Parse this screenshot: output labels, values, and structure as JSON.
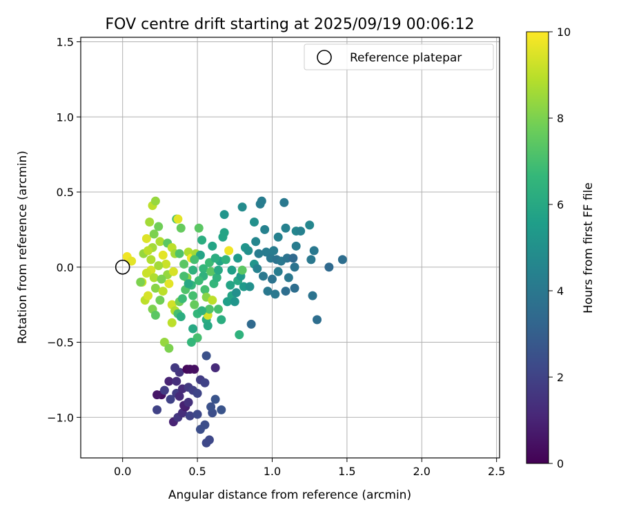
{
  "chart_data": {
    "type": "scatter",
    "title": "FOV centre drift starting at 2025/09/19 00:06:12",
    "xlabel": "Angular distance from reference (arcmin)",
    "ylabel": "Rotation from reference (arcmin)",
    "xlim": [
      -0.28,
      2.52
    ],
    "ylim": [
      -1.27,
      1.53
    ],
    "xticks": [
      0.0,
      0.5,
      1.0,
      1.5,
      2.0,
      2.5
    ],
    "xtick_labels": [
      "0.0",
      "0.5",
      "1.0",
      "1.5",
      "2.0",
      "2.5"
    ],
    "yticks": [
      -1.0,
      -0.5,
      0.0,
      0.5,
      1.0,
      1.5
    ],
    "ytick_labels": [
      "−1.0",
      "−0.5",
      "0.0",
      "0.5",
      "1.0",
      "1.5"
    ],
    "grid": true,
    "legend": {
      "position": "top-right",
      "label": "Reference platepar"
    },
    "reference_point": {
      "x": 0.0,
      "y": 0.0
    },
    "colorbar": {
      "label": "Hours from first FF file",
      "range": [
        0,
        10
      ],
      "ticks": [
        0,
        2,
        4,
        6,
        8,
        10
      ],
      "tick_labels": [
        "0",
        "2",
        "4",
        "6",
        "8",
        "10"
      ],
      "colormap": [
        "#440154",
        "#482878",
        "#3e4989",
        "#31688e",
        "#26828e",
        "#1f9e89",
        "#35b779",
        "#6ece58",
        "#b5de2b",
        "#fde725"
      ]
    },
    "points": [
      {
        "x": 0.34,
        "y": -1.03,
        "h": 1.0
      },
      {
        "x": 0.37,
        "y": -1.0,
        "h": 1.6
      },
      {
        "x": 0.4,
        "y": -0.97,
        "h": 1.3
      },
      {
        "x": 0.42,
        "y": -0.93,
        "h": 0.8
      },
      {
        "x": 0.45,
        "y": -0.99,
        "h": 2.0
      },
      {
        "x": 0.5,
        "y": -0.98,
        "h": 2.2
      },
      {
        "x": 0.52,
        "y": -1.08,
        "h": 2.4
      },
      {
        "x": 0.55,
        "y": -1.05,
        "h": 2.4
      },
      {
        "x": 0.56,
        "y": -1.17,
        "h": 2.2
      },
      {
        "x": 0.58,
        "y": -1.15,
        "h": 2.2
      },
      {
        "x": 0.6,
        "y": -0.97,
        "h": 2.4
      },
      {
        "x": 0.59,
        "y": -0.93,
        "h": 2.5
      },
      {
        "x": 0.62,
        "y": -0.88,
        "h": 2.6
      },
      {
        "x": 0.66,
        "y": -0.95,
        "h": 2.6
      },
      {
        "x": 0.23,
        "y": -0.95,
        "h": 2.0
      },
      {
        "x": 0.26,
        "y": -0.85,
        "h": 0.4
      },
      {
        "x": 0.23,
        "y": -0.85,
        "h": 0.6
      },
      {
        "x": 0.28,
        "y": -0.82,
        "h": 1.8
      },
      {
        "x": 0.32,
        "y": -0.88,
        "h": 2.0
      },
      {
        "x": 0.36,
        "y": -0.84,
        "h": 1.8
      },
      {
        "x": 0.38,
        "y": -0.86,
        "h": 1.2
      },
      {
        "x": 0.4,
        "y": -0.81,
        "h": 1.2
      },
      {
        "x": 0.44,
        "y": -0.8,
        "h": 1.7
      },
      {
        "x": 0.47,
        "y": -0.82,
        "h": 1.9
      },
      {
        "x": 0.5,
        "y": -0.84,
        "h": 2.1
      },
      {
        "x": 0.31,
        "y": -0.76,
        "h": 1.0
      },
      {
        "x": 0.36,
        "y": -0.76,
        "h": 1.3
      },
      {
        "x": 0.38,
        "y": -0.7,
        "h": 1.5
      },
      {
        "x": 0.35,
        "y": -0.67,
        "h": 1.7
      },
      {
        "x": 0.43,
        "y": -0.68,
        "h": 0.2
      },
      {
        "x": 0.45,
        "y": -0.68,
        "h": 0.3
      },
      {
        "x": 0.48,
        "y": -0.68,
        "h": 0.4
      },
      {
        "x": 0.52,
        "y": -0.75,
        "h": 1.8
      },
      {
        "x": 0.55,
        "y": -0.77,
        "h": 2.0
      },
      {
        "x": 0.62,
        "y": -0.67,
        "h": 1.2
      },
      {
        "x": 0.56,
        "y": -0.59,
        "h": 2.5
      },
      {
        "x": 0.41,
        "y": -0.92,
        "h": 0.9
      },
      {
        "x": 0.44,
        "y": -0.9,
        "h": 1.4
      },
      {
        "x": 0.03,
        "y": 0.07,
        "h": 9.8
      },
      {
        "x": 0.06,
        "y": 0.04,
        "h": 9.6
      },
      {
        "x": 0.13,
        "y": -0.1,
        "h": 9.2
      },
      {
        "x": 0.15,
        "y": -0.22,
        "h": 9.0
      },
      {
        "x": 0.16,
        "y": 0.19,
        "h": 9.5
      },
      {
        "x": 0.18,
        "y": 0.3,
        "h": 8.6
      },
      {
        "x": 0.2,
        "y": 0.41,
        "h": 9.0
      },
      {
        "x": 0.22,
        "y": 0.44,
        "h": 8.4
      },
      {
        "x": 0.24,
        "y": 0.27,
        "h": 7.8
      },
      {
        "x": 0.2,
        "y": 0.13,
        "h": 8.6
      },
      {
        "x": 0.19,
        "y": 0.05,
        "h": 8.8
      },
      {
        "x": 0.19,
        "y": -0.02,
        "h": 9.4
      },
      {
        "x": 0.21,
        "y": -0.07,
        "h": 8.8
      },
      {
        "x": 0.22,
        "y": -0.14,
        "h": 8.2
      },
      {
        "x": 0.2,
        "y": -0.28,
        "h": 8.0
      },
      {
        "x": 0.22,
        "y": -0.32,
        "h": 7.4
      },
      {
        "x": 0.25,
        "y": -0.22,
        "h": 7.8
      },
      {
        "x": 0.27,
        "y": -0.16,
        "h": 9.0
      },
      {
        "x": 0.25,
        "y": 0.17,
        "h": 8.8
      },
      {
        "x": 0.27,
        "y": 0.08,
        "h": 9.6
      },
      {
        "x": 0.29,
        "y": 0.02,
        "h": 9.2
      },
      {
        "x": 0.3,
        "y": -0.05,
        "h": 8.4
      },
      {
        "x": 0.31,
        "y": -0.11,
        "h": 9.6
      },
      {
        "x": 0.3,
        "y": 0.16,
        "h": 7.4
      },
      {
        "x": 0.33,
        "y": 0.13,
        "h": 9.0
      },
      {
        "x": 0.35,
        "y": 0.09,
        "h": 8.6
      },
      {
        "x": 0.34,
        "y": -0.03,
        "h": 9.4
      },
      {
        "x": 0.33,
        "y": -0.25,
        "h": 9.3
      },
      {
        "x": 0.35,
        "y": -0.29,
        "h": 8.8
      },
      {
        "x": 0.38,
        "y": -0.23,
        "h": 7.8
      },
      {
        "x": 0.37,
        "y": -0.31,
        "h": 7.0
      },
      {
        "x": 0.4,
        "y": -0.21,
        "h": 6.8
      },
      {
        "x": 0.36,
        "y": 0.32,
        "h": 7.0
      },
      {
        "x": 0.37,
        "y": 0.32,
        "h": 9.6
      },
      {
        "x": 0.39,
        "y": 0.26,
        "h": 7.6
      },
      {
        "x": 0.38,
        "y": 0.09,
        "h": 7.2
      },
      {
        "x": 0.41,
        "y": 0.02,
        "h": 7.4
      },
      {
        "x": 0.43,
        "y": -0.07,
        "h": 8.2
      },
      {
        "x": 0.42,
        "y": -0.15,
        "h": 7.2
      },
      {
        "x": 0.44,
        "y": 0.1,
        "h": 8.8
      },
      {
        "x": 0.46,
        "y": 0.06,
        "h": 9.8
      },
      {
        "x": 0.46,
        "y": -0.12,
        "h": 6.6
      },
      {
        "x": 0.47,
        "y": -0.19,
        "h": 7.0
      },
      {
        "x": 0.48,
        "y": -0.25,
        "h": 7.6
      },
      {
        "x": 0.49,
        "y": 0.09,
        "h": 8.6
      },
      {
        "x": 0.5,
        "y": -0.31,
        "h": 6.6
      },
      {
        "x": 0.5,
        "y": -0.47,
        "h": 7.0
      },
      {
        "x": 0.47,
        "y": -0.41,
        "h": 6.0
      },
      {
        "x": 0.46,
        "y": -0.5,
        "h": 6.6
      },
      {
        "x": 0.51,
        "y": 0.26,
        "h": 7.4
      },
      {
        "x": 0.53,
        "y": 0.18,
        "h": 6.2
      },
      {
        "x": 0.52,
        "y": 0.08,
        "h": 5.8
      },
      {
        "x": 0.54,
        "y": -0.01,
        "h": 6.6
      },
      {
        "x": 0.54,
        "y": -0.06,
        "h": 6.4
      },
      {
        "x": 0.55,
        "y": -0.15,
        "h": 7.0
      },
      {
        "x": 0.56,
        "y": -0.2,
        "h": 8.2
      },
      {
        "x": 0.56,
        "y": -0.35,
        "h": 6.2
      },
      {
        "x": 0.57,
        "y": -0.32,
        "h": 9.4
      },
      {
        "x": 0.57,
        "y": -0.39,
        "h": 6.0
      },
      {
        "x": 0.58,
        "y": -0.28,
        "h": 7.2
      },
      {
        "x": 0.58,
        "y": 0.03,
        "h": 6.8
      },
      {
        "x": 0.59,
        "y": -0.03,
        "h": 7.4
      },
      {
        "x": 0.6,
        "y": -0.22,
        "h": 9.0
      },
      {
        "x": 0.6,
        "y": 0.14,
        "h": 5.8
      },
      {
        "x": 0.61,
        "y": -0.11,
        "h": 6.6
      },
      {
        "x": 0.63,
        "y": -0.07,
        "h": 6.4
      },
      {
        "x": 0.64,
        "y": -0.02,
        "h": 6.0
      },
      {
        "x": 0.65,
        "y": 0.04,
        "h": 5.8
      },
      {
        "x": 0.66,
        "y": -0.35,
        "h": 6.2
      },
      {
        "x": 0.67,
        "y": 0.2,
        "h": 5.8
      },
      {
        "x": 0.68,
        "y": 0.23,
        "h": 5.8
      },
      {
        "x": 0.68,
        "y": 0.35,
        "h": 5.2
      },
      {
        "x": 0.69,
        "y": 0.05,
        "h": 6.4
      },
      {
        "x": 0.7,
        "y": -0.23,
        "h": 5.6
      },
      {
        "x": 0.71,
        "y": 0.11,
        "h": 9.8
      },
      {
        "x": 0.72,
        "y": -0.12,
        "h": 5.8
      },
      {
        "x": 0.73,
        "y": -0.19,
        "h": 5.8
      },
      {
        "x": 0.73,
        "y": -0.02,
        "h": 5.6
      },
      {
        "x": 0.75,
        "y": -0.23,
        "h": 5.2
      },
      {
        "x": 0.76,
        "y": -0.17,
        "h": 5.0
      },
      {
        "x": 0.77,
        "y": 0.06,
        "h": 5.4
      },
      {
        "x": 0.77,
        "y": -0.09,
        "h": 6.0
      },
      {
        "x": 0.78,
        "y": -0.45,
        "h": 6.4
      },
      {
        "x": 0.79,
        "y": -0.06,
        "h": 5.4
      },
      {
        "x": 0.8,
        "y": 0.4,
        "h": 4.8
      },
      {
        "x": 0.8,
        "y": -0.02,
        "h": 7.4
      },
      {
        "x": 0.81,
        "y": -0.13,
        "h": 5.4
      },
      {
        "x": 0.82,
        "y": 0.13,
        "h": 5.2
      },
      {
        "x": 0.84,
        "y": 0.11,
        "h": 5.0
      },
      {
        "x": 0.85,
        "y": -0.13,
        "h": 5.0
      },
      {
        "x": 0.86,
        "y": -0.38,
        "h": 3.4
      },
      {
        "x": 0.88,
        "y": 0.3,
        "h": 5.0
      },
      {
        "x": 0.88,
        "y": 0.02,
        "h": 5.2
      },
      {
        "x": 0.89,
        "y": 0.17,
        "h": 4.6
      },
      {
        "x": 0.9,
        "y": -0.01,
        "h": 4.4
      },
      {
        "x": 0.91,
        "y": 0.09,
        "h": 4.2
      },
      {
        "x": 0.92,
        "y": 0.42,
        "h": 4.2
      },
      {
        "x": 0.93,
        "y": 0.44,
        "h": 4.2
      },
      {
        "x": 0.94,
        "y": -0.06,
        "h": 4.0
      },
      {
        "x": 0.95,
        "y": 0.25,
        "h": 4.4
      },
      {
        "x": 0.96,
        "y": 0.1,
        "h": 4.2
      },
      {
        "x": 0.97,
        "y": -0.16,
        "h": 4.0
      },
      {
        "x": 0.99,
        "y": 0.06,
        "h": 4.0
      },
      {
        "x": 1.0,
        "y": -0.08,
        "h": 3.8
      },
      {
        "x": 1.01,
        "y": 0.11,
        "h": 4.2
      },
      {
        "x": 1.02,
        "y": -0.18,
        "h": 4.0
      },
      {
        "x": 1.03,
        "y": 0.05,
        "h": 3.8
      },
      {
        "x": 1.04,
        "y": 0.2,
        "h": 4.4
      },
      {
        "x": 1.04,
        "y": -0.03,
        "h": 4.2
      },
      {
        "x": 1.06,
        "y": 0.04,
        "h": 4.0
      },
      {
        "x": 1.08,
        "y": 0.43,
        "h": 4.0
      },
      {
        "x": 1.09,
        "y": 0.26,
        "h": 4.4
      },
      {
        "x": 1.09,
        "y": -0.16,
        "h": 3.6
      },
      {
        "x": 1.1,
        "y": 0.06,
        "h": 3.8
      },
      {
        "x": 1.11,
        "y": -0.07,
        "h": 4.0
      },
      {
        "x": 1.14,
        "y": 0.06,
        "h": 3.4
      },
      {
        "x": 1.15,
        "y": 0.0,
        "h": 3.8
      },
      {
        "x": 1.15,
        "y": -0.14,
        "h": 3.6
      },
      {
        "x": 1.16,
        "y": 0.24,
        "h": 4.6
      },
      {
        "x": 1.16,
        "y": 0.14,
        "h": 4.2
      },
      {
        "x": 1.19,
        "y": 0.24,
        "h": 4.4
      },
      {
        "x": 1.25,
        "y": 0.28,
        "h": 4.6
      },
      {
        "x": 1.26,
        "y": 0.05,
        "h": 4.0
      },
      {
        "x": 1.27,
        "y": -0.19,
        "h": 3.8
      },
      {
        "x": 1.28,
        "y": 0.11,
        "h": 4.0
      },
      {
        "x": 1.3,
        "y": -0.35,
        "h": 3.6
      },
      {
        "x": 1.38,
        "y": 0.0,
        "h": 3.4
      },
      {
        "x": 1.47,
        "y": 0.05,
        "h": 3.6
      },
      {
        "x": 0.12,
        "y": -0.1,
        "h": 8.0
      },
      {
        "x": 0.14,
        "y": 0.09,
        "h": 8.4
      },
      {
        "x": 0.16,
        "y": -0.04,
        "h": 9.2
      },
      {
        "x": 0.17,
        "y": 0.11,
        "h": 9.0
      },
      {
        "x": 0.17,
        "y": -0.19,
        "h": 9.4
      },
      {
        "x": 0.21,
        "y": 0.22,
        "h": 8.0
      },
      {
        "x": 0.24,
        "y": 0.01,
        "h": 8.6
      },
      {
        "x": 0.26,
        "y": -0.08,
        "h": 8.0
      },
      {
        "x": 0.28,
        "y": -0.5,
        "h": 8.4
      },
      {
        "x": 0.31,
        "y": -0.54,
        "h": 8.0
      },
      {
        "x": 0.33,
        "y": -0.37,
        "h": 9.0
      },
      {
        "x": 0.39,
        "y": -0.33,
        "h": 6.2
      },
      {
        "x": 0.41,
        "y": -0.06,
        "h": 7.0
      },
      {
        "x": 0.44,
        "y": -0.11,
        "h": 6.0
      },
      {
        "x": 0.47,
        "y": -0.02,
        "h": 6.4
      },
      {
        "x": 0.48,
        "y": 0.05,
        "h": 7.0
      },
      {
        "x": 0.51,
        "y": -0.09,
        "h": 6.8
      },
      {
        "x": 0.53,
        "y": -0.29,
        "h": 6.4
      },
      {
        "x": 0.62,
        "y": 0.06,
        "h": 6.2
      },
      {
        "x": 0.64,
        "y": -0.28,
        "h": 7.0
      }
    ]
  }
}
